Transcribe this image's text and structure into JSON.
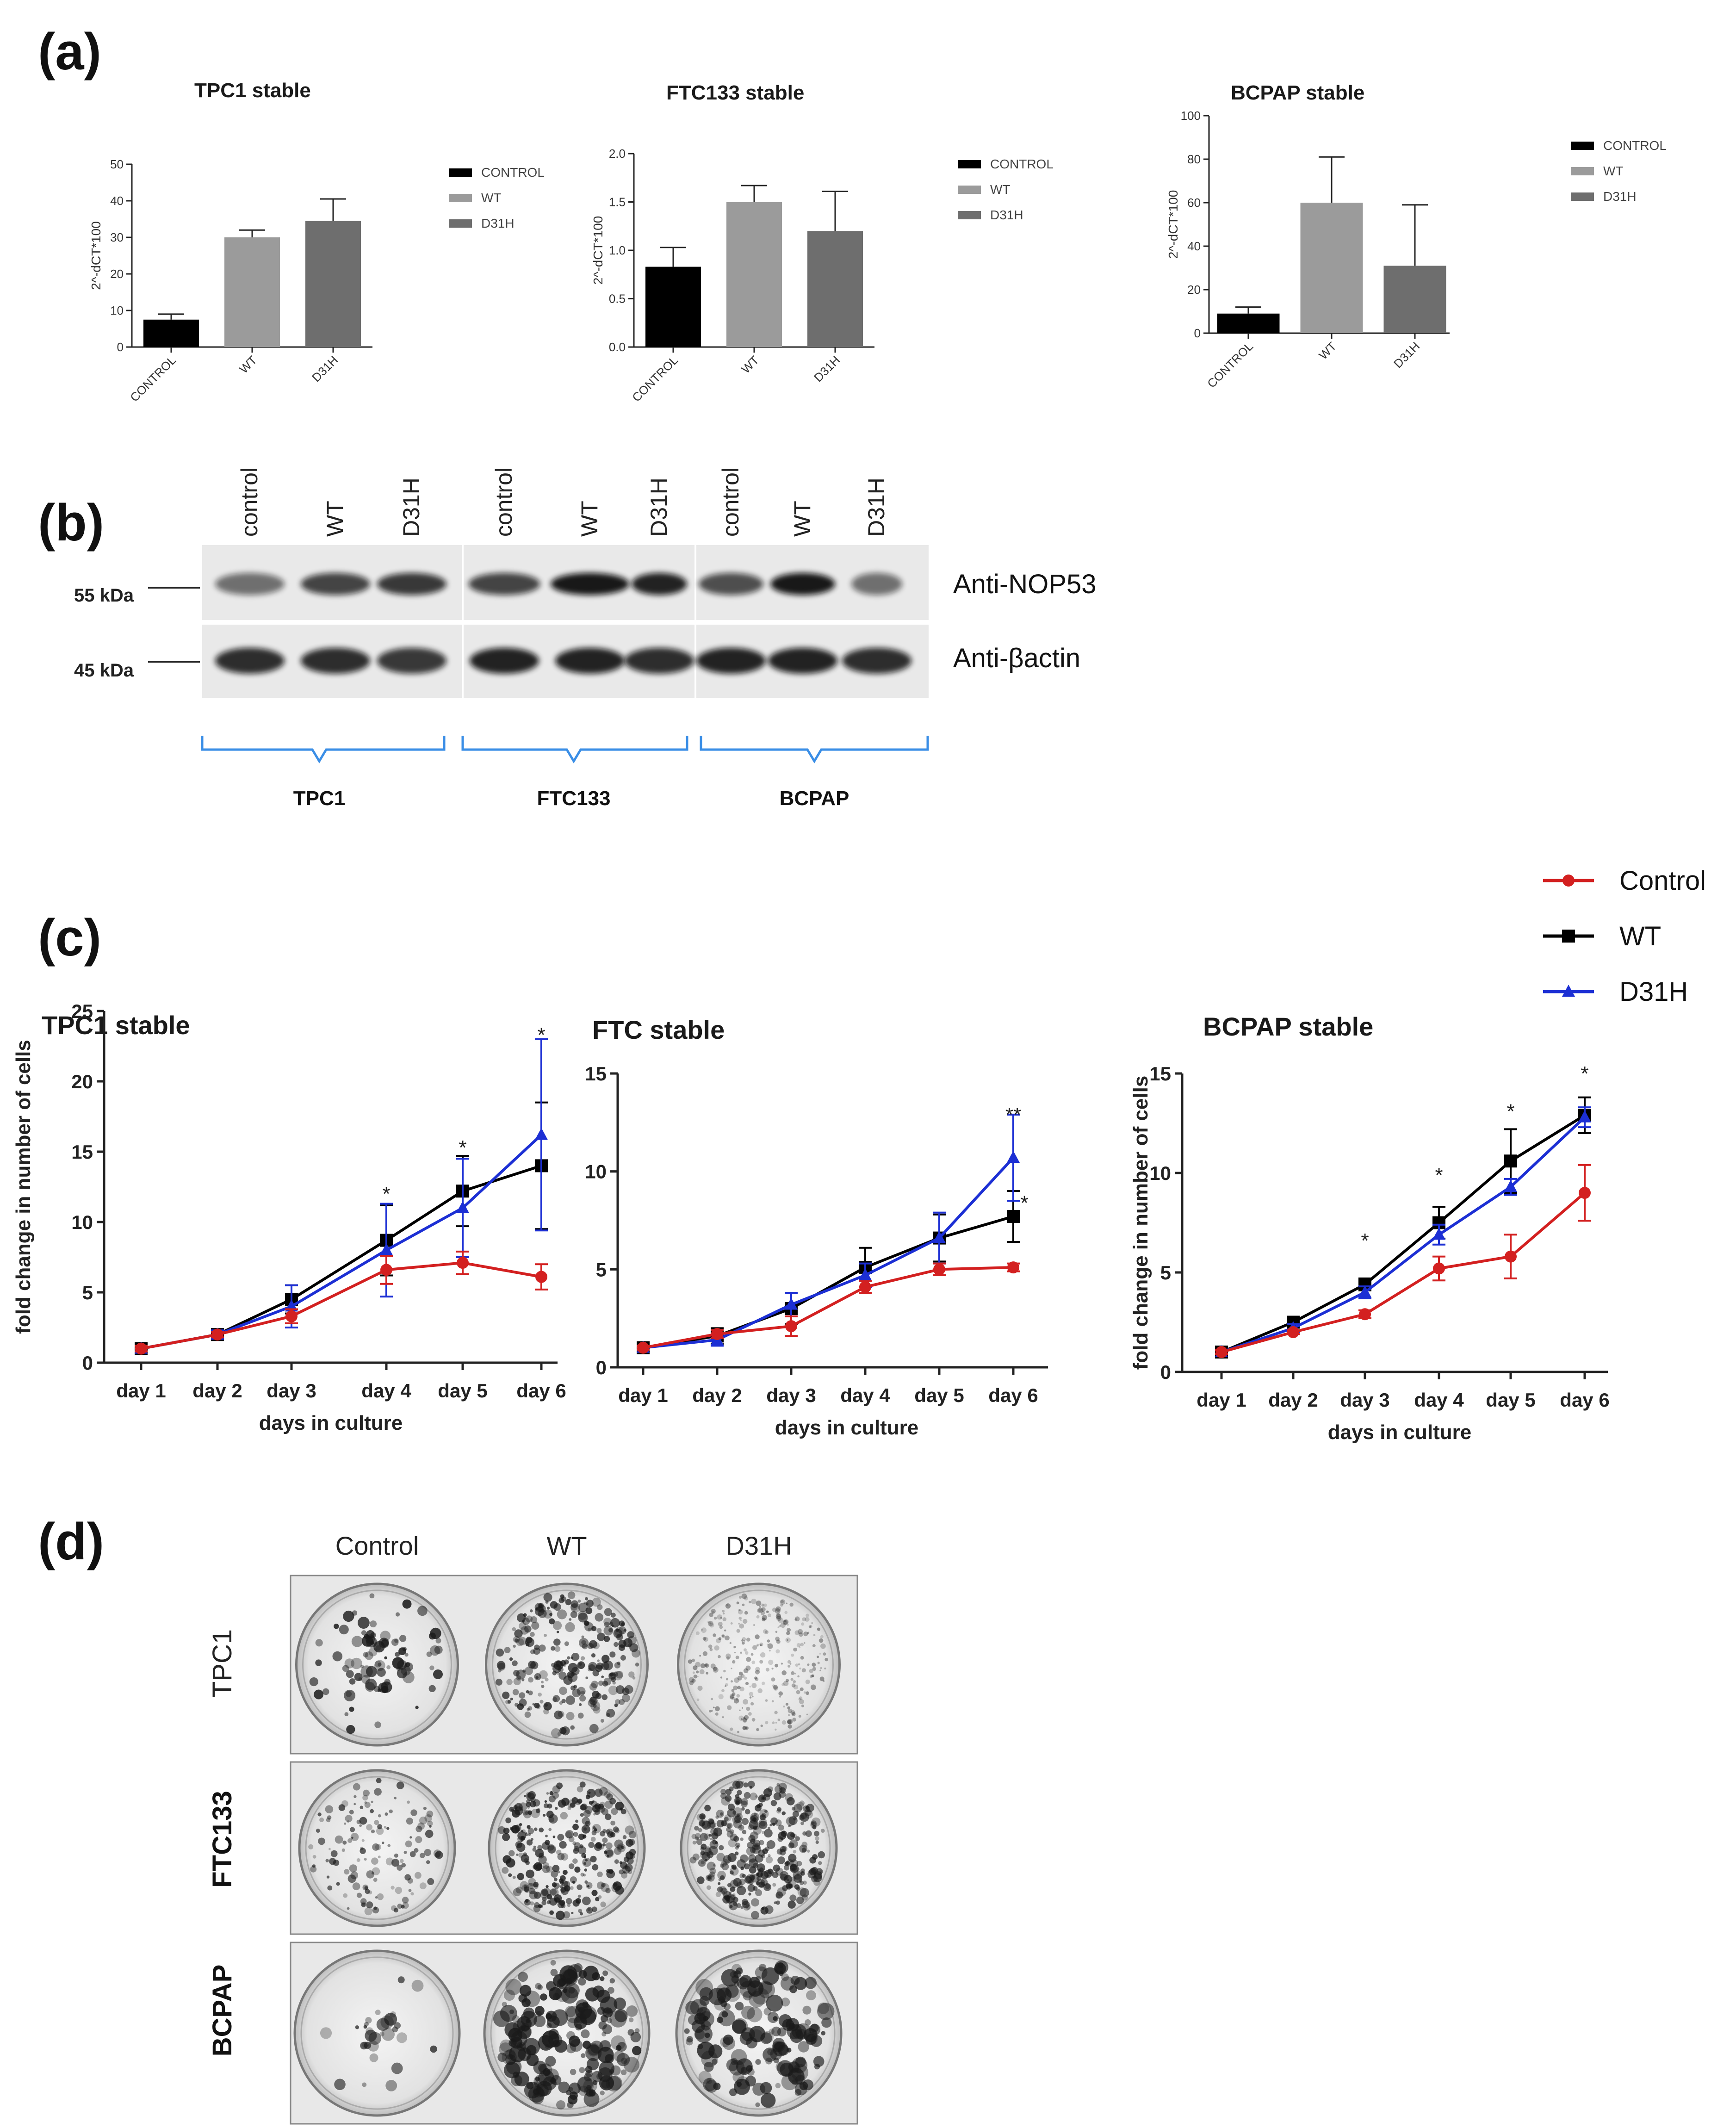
{
  "panels": {
    "a": "(a)",
    "b": "(b)",
    "c": "(c)",
    "d": "(d)"
  },
  "colors": {
    "control_bar": "#000000",
    "wt_bar": "#9b9b9b",
    "d31h_bar": "#6e6e6e",
    "control_line": "#d32020",
    "wt_line": "#000000",
    "d31h_line": "#1c2fd4",
    "bracket": "#3a8ee6"
  },
  "chart_data": [
    {
      "type": "bar",
      "title": "TPC1 stable",
      "ylabel": "2^-dCT*100",
      "categories": [
        "CONTROL",
        "WT",
        "D31H"
      ],
      "values": [
        7.5,
        30,
        34.5
      ],
      "errors": [
        1.5,
        2,
        6
      ],
      "ylim": [
        0,
        50
      ],
      "yticks": [
        "0",
        "10",
        "20",
        "30",
        "40",
        "50"
      ],
      "legend": [
        "CONTROL",
        "WT",
        "D31H"
      ]
    },
    {
      "type": "bar",
      "title": "FTC133 stable",
      "ylabel": "2^-dCT*100",
      "categories": [
        "CONTROL",
        "WT",
        "D31H"
      ],
      "values": [
        0.83,
        1.5,
        1.2
      ],
      "errors": [
        0.2,
        0.17,
        0.41
      ],
      "ylim": [
        0,
        2
      ],
      "yticks": [
        "0.0",
        "0.5",
        "1.0",
        "1.5",
        "2.0"
      ],
      "legend": [
        "CONTROL",
        "WT",
        "D31H"
      ]
    },
    {
      "type": "bar",
      "title": "BCPAP stable",
      "ylabel": "2^-dCT*100",
      "categories": [
        "CONTROL",
        "WT",
        "D31H"
      ],
      "values": [
        9,
        60,
        31
      ],
      "errors": [
        3,
        21,
        28
      ],
      "ylim": [
        0,
        100
      ],
      "yticks": [
        "0",
        "20",
        "40",
        "60",
        "80",
        "100"
      ],
      "legend": [
        "CONTROL",
        "WT",
        "D31H"
      ]
    },
    {
      "type": "line",
      "title": "TPC1 stable",
      "xlabel": "days in culture",
      "ylabel": "fold change in number of cells",
      "categories": [
        "day 1",
        "day 2",
        "day 3",
        "day 4",
        "day 5",
        "day 6"
      ],
      "ylim": [
        0,
        25
      ],
      "yticks": [
        "0",
        "5",
        "10",
        "15",
        "20",
        "25"
      ],
      "series": [
        {
          "name": "Control",
          "values": [
            1,
            2,
            3.3,
            6.6,
            7.1,
            6.1
          ],
          "errors": [
            0.2,
            0.2,
            0.5,
            1,
            0.8,
            0.9
          ]
        },
        {
          "name": "WT",
          "values": [
            1,
            2,
            4.5,
            8.7,
            12.2,
            14
          ],
          "errors": [
            0.2,
            0.3,
            1,
            2.5,
            2.5,
            4.5
          ]
        },
        {
          "name": "D31H",
          "values": [
            1,
            2,
            4,
            8,
            11,
            16.2
          ],
          "errors": [
            0.2,
            0.3,
            1.5,
            3.3,
            3.5,
            6.8
          ]
        }
      ],
      "stars": [
        {
          "x": 3,
          "text": "*",
          "y": 12
        },
        {
          "x": 4,
          "text": "*",
          "y": 15.3
        },
        {
          "x": 5,
          "text": "*",
          "y": 23.3
        }
      ]
    },
    {
      "type": "line",
      "title": "FTC stable",
      "xlabel": "days in culture",
      "ylabel": "",
      "categories": [
        "day 1",
        "day 2",
        "day 3",
        "day 4",
        "day 5",
        "day 6"
      ],
      "ylim": [
        0,
        15
      ],
      "yticks": [
        "0",
        "5",
        "10",
        "15"
      ],
      "series": [
        {
          "name": "Control",
          "values": [
            1,
            1.7,
            2.1,
            4.1,
            5,
            5.1
          ],
          "errors": [
            0.1,
            0.2,
            0.5,
            0.3,
            0.3,
            0.2
          ]
        },
        {
          "name": "WT",
          "values": [
            1,
            1.6,
            3,
            5.1,
            6.6,
            7.7
          ],
          "errors": [
            0.1,
            0.4,
            0.8,
            1,
            1.2,
            1.3
          ]
        },
        {
          "name": "D31H",
          "values": [
            1,
            1.4,
            3.2,
            4.7,
            6.6,
            10.7
          ],
          "errors": [
            0.1,
            0.3,
            0.6,
            0.6,
            1.3,
            2.2
          ]
        }
      ],
      "stars": [
        {
          "x": 5,
          "text": "**",
          "y": 12.9
        },
        {
          "x": 5.2,
          "text": "*",
          "y": 8.4
        }
      ]
    },
    {
      "type": "line",
      "title": "BCPAP stable",
      "xlabel": "days in culture",
      "ylabel": "fold change in number of cells",
      "categories": [
        "day 1",
        "day 2",
        "day 3",
        "day 4",
        "day 5",
        "day 6"
      ],
      "ylim": [
        0,
        15
      ],
      "yticks": [
        "0",
        "5",
        "10",
        "15"
      ],
      "series": [
        {
          "name": "Control",
          "values": [
            1,
            2,
            2.9,
            5.2,
            5.8,
            9
          ],
          "errors": [
            0.1,
            0.1,
            0.2,
            0.6,
            1.1,
            1.4
          ]
        },
        {
          "name": "WT",
          "values": [
            1,
            2.5,
            4.4,
            7.5,
            10.6,
            12.9
          ],
          "errors": [
            0.1,
            0.2,
            0.3,
            0.8,
            1.6,
            0.9
          ]
        },
        {
          "name": "D31H",
          "values": [
            1,
            2.2,
            4,
            6.9,
            9.3,
            12.8
          ],
          "errors": [
            0.1,
            0.2,
            0.3,
            0.5,
            0.4,
            0.5
          ]
        }
      ],
      "stars": [
        {
          "x": 2,
          "text": "*",
          "y": 6.6
        },
        {
          "x": 3,
          "text": "*",
          "y": 9.9
        },
        {
          "x": 4,
          "text": "*",
          "y": 13.1
        },
        {
          "x": 5,
          "text": "*",
          "y": 15
        }
      ]
    }
  ],
  "line_legend": [
    "Control",
    "WT",
    "D31H"
  ],
  "western_blot": {
    "lane_labels": [
      "control",
      "WT",
      "D31H",
      "control",
      "WT",
      "D31H",
      "control",
      "WT",
      "D31H"
    ],
    "markers": [
      "55 kDa",
      "45 kDa"
    ],
    "antibodies": [
      "Anti-NOP53",
      "Anti-βactin"
    ],
    "cell_lines": [
      "TPC1",
      "FTC133",
      "BCPAP"
    ]
  },
  "colony": {
    "columns": [
      "Control",
      "WT",
      "D31H"
    ],
    "rows": [
      "TPC1",
      "FTC133",
      "BCPAP"
    ]
  }
}
